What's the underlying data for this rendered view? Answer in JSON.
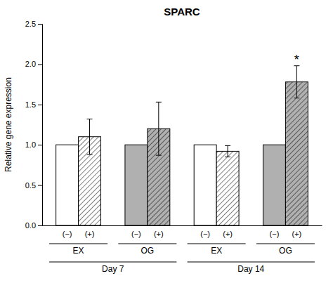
{
  "chart_data": {
    "type": "bar",
    "title": "SPARC",
    "ylabel": "Relative gene expression",
    "categories": [
      "EX",
      "OG",
      "EX",
      "OG"
    ],
    "category_groups": [
      "Day 7",
      "Day 7",
      "Day 14",
      "Day 14"
    ],
    "series": [
      {
        "name": "(−)",
        "values": [
          1.0,
          1.0,
          1.0,
          1.0
        ],
        "colors": [
          "white",
          "#b0b0b0",
          "white",
          "#b0b0b0"
        ]
      },
      {
        "name": "(+)",
        "values": [
          1.1,
          1.2,
          0.92,
          1.78
        ],
        "errors": [
          0.22,
          0.33,
          0.07,
          0.2
        ],
        "colors": [
          "white",
          "#b0b0b0",
          "white",
          "#b0b0b0"
        ]
      }
    ],
    "annotations": [
      {
        "text": "*",
        "series": "(+)",
        "index": 3
      }
    ],
    "ylim": [
      0.0,
      2.5
    ],
    "yticks": [
      {
        "value": 0.0,
        "label": "0.0"
      },
      0.5,
      {
        "value": 1.0,
        "label": "1.0"
      },
      1.5,
      {
        "value": 2.0,
        "label": "2.0"
      },
      2.5
    ],
    "grid": false
  }
}
